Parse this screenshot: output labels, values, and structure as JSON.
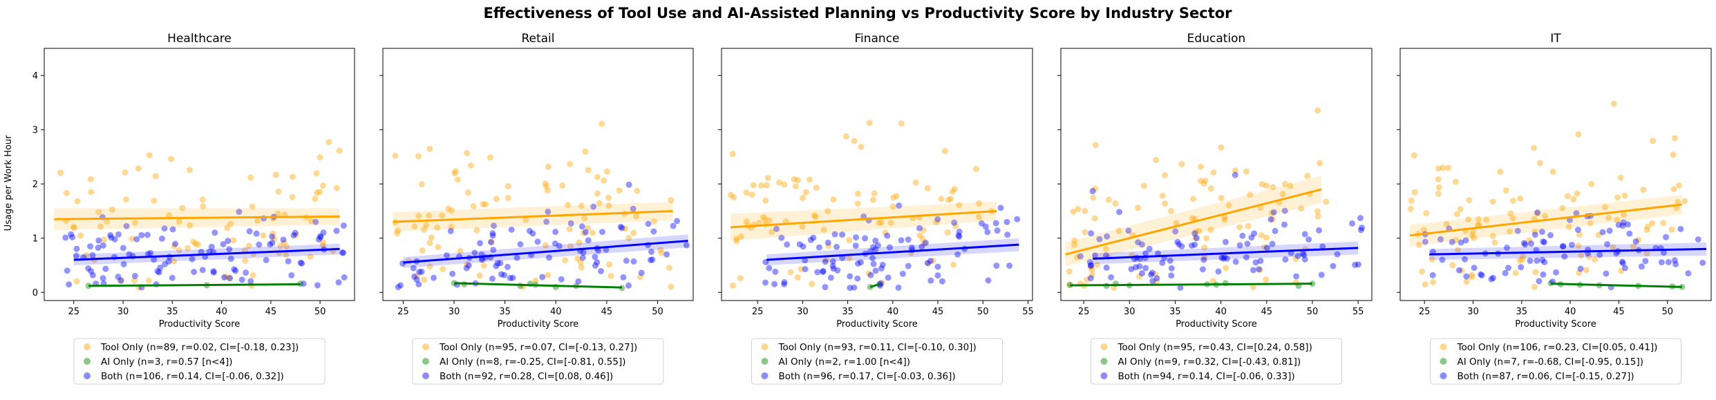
{
  "figure": {
    "title": "Effectiveness of Tool Use and AI-Assisted Planning vs Productivity Score by Industry Sector",
    "ylabel": "Usage per Work Hour",
    "xlabel": "Productivity Score",
    "colors": {
      "tool": "#FFA500",
      "ai": "#008000",
      "both": "#0000FF"
    },
    "ylim": [
      -0.15,
      4.5
    ],
    "yticks": [
      0,
      1,
      2,
      3,
      4
    ]
  },
  "chart_data": [
    {
      "type": "scatter",
      "panel": "Healthcare",
      "xlim": [
        22,
        53.5
      ],
      "xticks": [
        25,
        30,
        35,
        40,
        45,
        50
      ],
      "legend": [
        "Tool Only (n=89, r=0.02, CI=[-0.18, 0.23])",
        "AI Only (n=3, r=0.57 [n<4])",
        "Both (n=106, r=0.14, CI=[-0.06, 0.32])"
      ],
      "series": [
        {
          "name": "Tool Only",
          "color": "#FFA500",
          "fit": [
            [
              23,
              1.35
            ],
            [
              52,
              1.4
            ]
          ],
          "band": [
            0.2,
            0.15
          ],
          "n": 89,
          "seed": 11,
          "xr": [
            23,
            52
          ],
          "ysd": 0.75
        },
        {
          "name": "AI Only",
          "color": "#008000",
          "fit": [
            [
              26.5,
              0.12
            ],
            [
              48,
              0.15
            ]
          ],
          "points": [
            [
              26.5,
              0.12
            ],
            [
              38.5,
              0.13
            ],
            [
              48,
              0.16
            ]
          ]
        },
        {
          "name": "Both",
          "color": "#0000FF",
          "fit": [
            [
              25,
              0.6
            ],
            [
              52,
              0.8
            ]
          ],
          "band": [
            0.1,
            0.1
          ],
          "n": 106,
          "seed": 12,
          "xr": [
            24,
            52.5
          ],
          "ysd": 0.35
        }
      ]
    },
    {
      "type": "scatter",
      "panel": "Retail",
      "xlim": [
        23,
        53.5
      ],
      "xticks": [
        25,
        30,
        35,
        40,
        45,
        50
      ],
      "legend": [
        "Tool Only (n=95, r=0.07, CI=[-0.13, 0.27])",
        "AI Only (n=8, r=-0.25, CI=[-0.81, 0.55])",
        "Both (n=92, r=0.28, CI=[0.08, 0.46])"
      ],
      "series": [
        {
          "name": "Tool Only",
          "color": "#FFA500",
          "fit": [
            [
              24,
              1.3
            ],
            [
              51.5,
              1.5
            ]
          ],
          "band": [
            0.18,
            0.17
          ],
          "n": 95,
          "seed": 21,
          "xr": [
            24,
            51.5
          ],
          "ysd": 0.75
        },
        {
          "name": "AI Only",
          "color": "#008000",
          "fit": [
            [
              30,
              0.17
            ],
            [
              46.5,
              0.09
            ]
          ],
          "points": [
            [
              30,
              0.17
            ],
            [
              31,
              0.15
            ],
            [
              36.5,
              0.12
            ],
            [
              37.5,
              0.16
            ],
            [
              38,
              0.14
            ],
            [
              40,
              0.1
            ],
            [
              42,
              0.12
            ],
            [
              46.5,
              0.08
            ]
          ]
        },
        {
          "name": "Both",
          "color": "#0000FF",
          "fit": [
            [
              25,
              0.55
            ],
            [
              53,
              0.95
            ]
          ],
          "band": [
            0.1,
            0.12
          ],
          "n": 92,
          "seed": 22,
          "xr": [
            24.5,
            53
          ],
          "ysd": 0.35
        }
      ]
    },
    {
      "type": "scatter",
      "panel": "Finance",
      "xlim": [
        21,
        55.5
      ],
      "xticks": [
        25,
        30,
        35,
        40,
        45,
        50,
        55
      ],
      "legend": [
        "Tool Only (n=93, r=0.11, CI=[-0.10, 0.30])",
        "AI Only (n=2, r=1.00 [n<4])",
        "Both (n=96, r=0.17, CI=[-0.03, 0.36])"
      ],
      "series": [
        {
          "name": "Tool Only",
          "color": "#FFA500",
          "fit": [
            [
              22,
              1.2
            ],
            [
              51.5,
              1.5
            ]
          ],
          "band": [
            0.25,
            0.17
          ],
          "n": 93,
          "seed": 31,
          "xr": [
            22,
            51.5
          ],
          "ysd": 0.75
        },
        {
          "name": "AI Only",
          "color": "#008000",
          "fit": [
            [
              37.5,
              0.1
            ],
            [
              38.5,
              0.15
            ]
          ],
          "points": [
            [
              37.5,
              0.1
            ],
            [
              38.5,
              0.15
            ]
          ]
        },
        {
          "name": "Both",
          "color": "#0000FF",
          "fit": [
            [
              26,
              0.6
            ],
            [
              54,
              0.88
            ]
          ],
          "band": [
            0.1,
            0.12
          ],
          "n": 96,
          "seed": 32,
          "xr": [
            25.5,
            54
          ],
          "ysd": 0.35
        }
      ]
    },
    {
      "type": "scatter",
      "panel": "Education",
      "xlim": [
        22.5,
        56.5
      ],
      "xticks": [
        25,
        30,
        35,
        40,
        45,
        50,
        55
      ],
      "legend": [
        "Tool Only (n=95, r=0.43, CI=[0.24, 0.58])",
        "AI Only (n=9, r=0.32, CI=[-0.43, 0.81])",
        "Both (n=94, r=0.14, CI=[-0.06, 0.33])"
      ],
      "series": [
        {
          "name": "Tool Only",
          "color": "#FFA500",
          "fit": [
            [
              23,
              0.7
            ],
            [
              51,
              1.9
            ]
          ],
          "band": [
            0.22,
            0.25
          ],
          "n": 95,
          "seed": 41,
          "xr": [
            23,
            51.5
          ],
          "ysd": 0.7
        },
        {
          "name": "AI Only",
          "color": "#008000",
          "fit": [
            [
              23.5,
              0.13
            ],
            [
              50,
              0.16
            ]
          ],
          "points": [
            [
              23.5,
              0.14
            ],
            [
              27.5,
              0.12
            ],
            [
              28.5,
              0.16
            ],
            [
              30,
              0.13
            ],
            [
              38.5,
              0.15
            ],
            [
              39.5,
              0.14
            ],
            [
              40.5,
              0.17
            ],
            [
              48.5,
              0.12
            ],
            [
              50,
              0.16
            ]
          ]
        },
        {
          "name": "Both",
          "color": "#0000FF",
          "fit": [
            [
              26,
              0.62
            ],
            [
              55,
              0.82
            ]
          ],
          "band": [
            0.1,
            0.12
          ],
          "n": 94,
          "seed": 42,
          "xr": [
            24.5,
            55.5
          ],
          "ysd": 0.35
        }
      ]
    },
    {
      "type": "scatter",
      "panel": "IT",
      "xlim": [
        22.5,
        54.5
      ],
      "xticks": [
        25,
        30,
        35,
        40,
        45,
        50
      ],
      "legend": [
        "Tool Only (n=106, r=0.23, CI=[0.05, 0.41])",
        "AI Only (n=7, r=-0.68, CI=[-0.95, 0.15])",
        "Both (n=87, r=0.06, CI=[-0.15, 0.27])"
      ],
      "series": [
        {
          "name": "Tool Only",
          "color": "#FFA500",
          "fit": [
            [
              23.5,
              1.05
            ],
            [
              51.5,
              1.62
            ]
          ],
          "band": [
            0.2,
            0.18
          ],
          "n": 106,
          "seed": 51,
          "xr": [
            23.5,
            52
          ],
          "ysd": 0.75
        },
        {
          "name": "AI Only",
          "color": "#008000",
          "fit": [
            [
              38,
              0.16
            ],
            [
              51.5,
              0.1
            ]
          ],
          "points": [
            [
              38,
              0.17
            ],
            [
              39,
              0.15
            ],
            [
              41,
              0.14
            ],
            [
              43,
              0.13
            ],
            [
              47,
              0.12
            ],
            [
              50.5,
              0.11
            ],
            [
              51.5,
              0.1
            ]
          ]
        },
        {
          "name": "Both",
          "color": "#0000FF",
          "fit": [
            [
              25.5,
              0.7
            ],
            [
              54,
              0.8
            ]
          ],
          "band": [
            0.1,
            0.12
          ],
          "n": 87,
          "seed": 52,
          "xr": [
            25,
            54
          ],
          "ysd": 0.35
        }
      ]
    }
  ]
}
